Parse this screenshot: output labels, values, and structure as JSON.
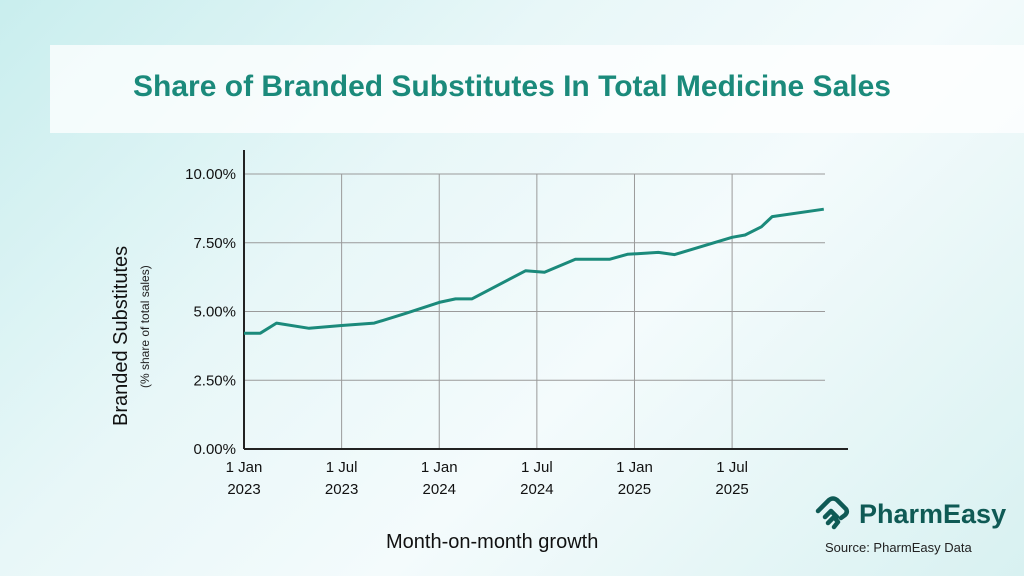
{
  "chart_data": {
    "type": "line",
    "title": "Share of Branded Substitutes In Total Medicine Sales",
    "ylabel": "Branded Substitutes",
    "ylabel_sub": "(% share of total sales)",
    "xlabel": "Month-on-month growth",
    "ylim": [
      0,
      10
    ],
    "yticks": [
      "0.00%",
      "2.50%",
      "5.00%",
      "7.50%",
      "10.00%"
    ],
    "ytick_values": [
      0,
      2.5,
      5,
      7.5,
      10
    ],
    "xticks": [
      {
        "date": "2023-01-01",
        "line1": "1 Jan",
        "line2": "2023"
      },
      {
        "date": "2023-07-01",
        "line1": "1 Jul",
        "line2": "2023"
      },
      {
        "date": "2024-01-01",
        "line1": "1 Jan",
        "line2": "2024"
      },
      {
        "date": "2024-07-01",
        "line1": "1 Jul",
        "line2": "2024"
      },
      {
        "date": "2025-01-01",
        "line1": "1 Jan",
        "line2": "2025"
      },
      {
        "date": "2025-07-01",
        "line1": "1 Jul",
        "line2": "2025"
      }
    ],
    "grid": true,
    "line_color": "#1b8a7b",
    "series": [
      {
        "x": [
          "2023-01-01",
          "2023-02-01",
          "2023-03-01",
          "2023-05-01",
          "2023-07-01",
          "2023-09-01",
          "2023-11-01",
          "2024-01-01",
          "2024-02-01",
          "2024-03-01",
          "2024-06-10",
          "2024-07-15",
          "2024-09-12",
          "2024-11-15",
          "2024-12-18",
          "2025-02-15",
          "2025-03-15",
          "2025-07-01",
          "2025-07-25",
          "2025-08-25",
          "2025-09-15",
          "2025-12-20"
        ],
        "y": [
          4.21,
          4.21,
          4.58,
          4.39,
          4.49,
          4.58,
          4.94,
          5.33,
          5.46,
          5.46,
          6.48,
          6.43,
          6.9,
          6.9,
          7.08,
          7.15,
          7.07,
          7.7,
          7.78,
          8.08,
          8.45,
          8.72
        ]
      }
    ]
  },
  "brand": {
    "name": "PharmEasy",
    "source": "Source: PharmEasy Data"
  }
}
